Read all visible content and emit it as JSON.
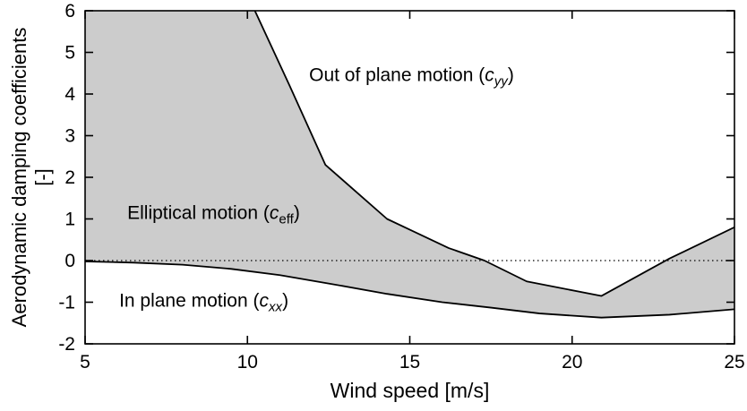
{
  "chart_data": {
    "type": "area",
    "title": "",
    "xlabel": "Wind speed [m/s]",
    "ylabel_line1": "Aerodynamic damping coefficients",
    "ylabel_line2": "[-]",
    "xlim": [
      5,
      25
    ],
    "ylim": [
      -2,
      6
    ],
    "xticks": [
      5,
      10,
      15,
      20,
      25
    ],
    "yticks": [
      -2,
      -1,
      0,
      1,
      2,
      3,
      4,
      5,
      6
    ],
    "grid": "off",
    "legend": "none",
    "zero_reference_line": 0,
    "fill_color": "#cccccc",
    "line_color": "#000000",
    "series": [
      {
        "name": "Out of plane motion (c_yy)",
        "points": [
          [
            5,
            8.5
          ],
          [
            9,
            7.0
          ],
          [
            10.2,
            6.05
          ],
          [
            11.3,
            4.2
          ],
          [
            12.4,
            2.3
          ],
          [
            14.3,
            1.0
          ],
          [
            16.2,
            0.3
          ],
          [
            17.3,
            0.0
          ],
          [
            18.6,
            -0.5
          ],
          [
            20.9,
            -0.85
          ],
          [
            23.0,
            0.05
          ],
          [
            25,
            0.8
          ]
        ]
      },
      {
        "name": "In plane motion (c_xx)",
        "points": [
          [
            5,
            -0.02
          ],
          [
            6.5,
            -0.05
          ],
          [
            8,
            -0.1
          ],
          [
            9.5,
            -0.2
          ],
          [
            11,
            -0.35
          ],
          [
            12.5,
            -0.55
          ],
          [
            14.3,
            -0.8
          ],
          [
            16,
            -1.0
          ],
          [
            17.5,
            -1.13
          ],
          [
            19,
            -1.27
          ],
          [
            20.9,
            -1.37
          ],
          [
            23,
            -1.3
          ],
          [
            25,
            -1.17
          ]
        ]
      }
    ],
    "shaded_region_between_curves": "Elliptical motion (c_eff)",
    "annotations": [
      {
        "id": "out-of-plane",
        "prefix": "Out of plane motion (",
        "symbol": "c",
        "subscript": "yy",
        "sub_italic": true,
        "suffix": ")",
        "x": 11.9,
        "y": 4.4
      },
      {
        "id": "elliptical",
        "prefix": "Elliptical motion (",
        "symbol": "c",
        "subscript": "eff",
        "sub_italic": false,
        "suffix": ")",
        "x": 6.3,
        "y": 1.1
      },
      {
        "id": "in-plane",
        "prefix": "In plane motion (",
        "symbol": "c",
        "subscript": "xx",
        "sub_italic": true,
        "suffix": ")",
        "x": 6.05,
        "y": -1.0
      }
    ]
  }
}
